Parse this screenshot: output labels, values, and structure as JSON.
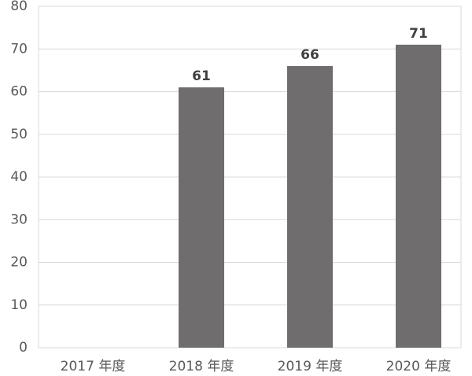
{
  "chart_data": {
    "type": "bar",
    "categories": [
      "2017 年度",
      "2018 年度",
      "2019 年度",
      "2020 年度"
    ],
    "values": [
      null,
      61,
      66,
      71
    ],
    "color": "#6f6d6d",
    "ylim": [
      0,
      80
    ],
    "yticks": [
      0,
      10,
      20,
      30,
      40,
      50,
      60,
      70,
      80
    ],
    "grid": true
  }
}
